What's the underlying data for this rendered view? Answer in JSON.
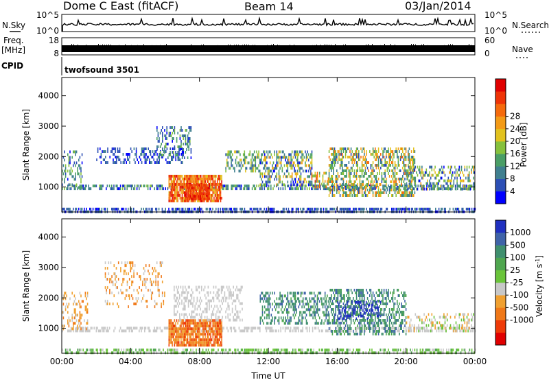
{
  "header": {
    "station": "Dome C East (fitACF)",
    "beam": "Beam 14",
    "date": "03/Jan/2014"
  },
  "panels": {
    "nsky": {
      "left_label": "N.Sky",
      "y_ticks_left": [
        "10^5",
        "10^0"
      ],
      "right_label": "N.Search",
      "y_ticks_right": [
        "10^5",
        "10^0"
      ]
    },
    "freq": {
      "left_label_1": "Freq.",
      "left_label_2": "[MHz]",
      "y_ticks_left": [
        "18",
        "8"
      ],
      "right_label": "Nave",
      "y_ticks_right": [
        "60",
        "0"
      ]
    },
    "cpid": {
      "left_label": "CPID",
      "value": "twofsound 3501"
    }
  },
  "chart_data": [
    {
      "type": "heatmap",
      "name": "power",
      "ylabel": "Slant Range [km]",
      "xlabel": "",
      "ylim": [
        180,
        4600
      ],
      "xlim": [
        0,
        24
      ],
      "y_ticks": [
        1000,
        2000,
        3000,
        4000
      ],
      "x_ticks": [
        0,
        4,
        8,
        12,
        16,
        20,
        24
      ],
      "colorbar": {
        "label": "Power [dB]",
        "ticks": [
          "4",
          "8",
          "12",
          "16",
          "20",
          "24",
          "28"
        ],
        "colors": [
          "#0000ff",
          "#2c4fb5",
          "#3f7f8f",
          "#4a9e66",
          "#86c13c",
          "#e2c21e",
          "#f39a16",
          "#f56a0c",
          "#ee3306",
          "#e00000"
        ]
      },
      "regions": [
        {
          "t0": 0.0,
          "t1": 24.0,
          "r0": 920,
          "r1": 1080,
          "density": 0.55,
          "level": 2,
          "spread": 2
        },
        {
          "t0": 0.0,
          "t1": 24.0,
          "r0": 200,
          "r1": 320,
          "density": 0.6,
          "level": 1,
          "spread": 1
        },
        {
          "t0": 0.0,
          "t1": 1.2,
          "r0": 1000,
          "r1": 2200,
          "density": 0.3,
          "level": 2,
          "spread": 2
        },
        {
          "t0": 2.0,
          "t1": 7.0,
          "r0": 1800,
          "r1": 2300,
          "density": 0.35,
          "level": 1,
          "spread": 1
        },
        {
          "t0": 5.5,
          "t1": 7.5,
          "r0": 2000,
          "r1": 3000,
          "density": 0.3,
          "level": 2,
          "spread": 2
        },
        {
          "t0": 6.2,
          "t1": 9.3,
          "r0": 500,
          "r1": 1400,
          "density": 0.85,
          "level": 7,
          "spread": 2
        },
        {
          "t0": 7.2,
          "t1": 8.6,
          "r0": 600,
          "r1": 1100,
          "density": 0.9,
          "level": 8,
          "spread": 1
        },
        {
          "t0": 9.5,
          "t1": 11.5,
          "r0": 1500,
          "r1": 2200,
          "density": 0.4,
          "level": 3,
          "spread": 2
        },
        {
          "t0": 11.5,
          "t1": 14.5,
          "r0": 1100,
          "r1": 2200,
          "density": 0.45,
          "level": 3,
          "spread": 3
        },
        {
          "t0": 14.5,
          "t1": 15.5,
          "r0": 1000,
          "r1": 1500,
          "density": 0.5,
          "level": 5,
          "spread": 3
        },
        {
          "t0": 15.5,
          "t1": 20.5,
          "r0": 700,
          "r1": 2300,
          "density": 0.5,
          "level": 4,
          "spread": 3
        },
        {
          "t0": 20.0,
          "t1": 24.0,
          "r0": 950,
          "r1": 1700,
          "density": 0.4,
          "level": 3,
          "spread": 3
        }
      ]
    },
    {
      "type": "heatmap",
      "name": "velocity",
      "ylabel": "Slant Range [km]",
      "xlabel": "Time UT",
      "ylim": [
        180,
        4600
      ],
      "xlim": [
        0,
        24
      ],
      "y_ticks": [
        1000,
        2000,
        3000,
        4000
      ],
      "x_ticks": [
        0,
        4,
        8,
        12,
        16,
        20,
        24
      ],
      "x_tick_labels": [
        "00:00",
        "04:00",
        "08:00",
        "12:00",
        "16:00",
        "20:00",
        "00:00"
      ],
      "colorbar": {
        "label": "Velocity [m s",
        "label_superscript": "-1",
        "label_close": "]",
        "ticks": [
          "1000",
          "500",
          "100",
          "25",
          "-25",
          "-100",
          "-500",
          "-1000"
        ],
        "colors": [
          "#2030c0",
          "#3f63a8",
          "#3f8f6e",
          "#4fa64f",
          "#6ac43a",
          "#c8c8c8",
          "#f0a030",
          "#f07818",
          "#ee3a08",
          "#e00000"
        ]
      },
      "regions": [
        {
          "t0": 0.0,
          "t1": 24.0,
          "r0": 200,
          "r1": 330,
          "density": 0.55,
          "level": 4,
          "spread": 1
        },
        {
          "t0": 0.0,
          "t1": 24.0,
          "r0": 900,
          "r1": 1050,
          "density": 0.45,
          "level": 5,
          "spread": 0
        },
        {
          "t0": 0.0,
          "t1": 1.5,
          "r0": 1000,
          "r1": 2200,
          "density": 0.3,
          "level": 6,
          "spread": 1
        },
        {
          "t0": 2.5,
          "t1": 6.0,
          "r0": 1700,
          "r1": 3200,
          "density": 0.2,
          "level": 6,
          "spread": 1
        },
        {
          "t0": 6.2,
          "t1": 9.3,
          "r0": 400,
          "r1": 1300,
          "density": 0.85,
          "level": 7,
          "spread": 1
        },
        {
          "t0": 6.5,
          "t1": 10.5,
          "r0": 1300,
          "r1": 2400,
          "density": 0.35,
          "level": 5,
          "spread": 0
        },
        {
          "t0": 11.5,
          "t1": 15.5,
          "r0": 1200,
          "r1": 2200,
          "density": 0.4,
          "level": 2,
          "spread": 1
        },
        {
          "t0": 15.5,
          "t1": 20.0,
          "r0": 800,
          "r1": 2300,
          "density": 0.45,
          "level": 2,
          "spread": 1
        },
        {
          "t0": 16.0,
          "t1": 18.5,
          "r0": 1300,
          "r1": 1900,
          "density": 0.4,
          "level": 0,
          "spread": 1
        },
        {
          "t0": 20.0,
          "t1": 24.0,
          "r0": 900,
          "r1": 1500,
          "density": 0.3,
          "level": 5,
          "spread": 1
        }
      ]
    }
  ]
}
